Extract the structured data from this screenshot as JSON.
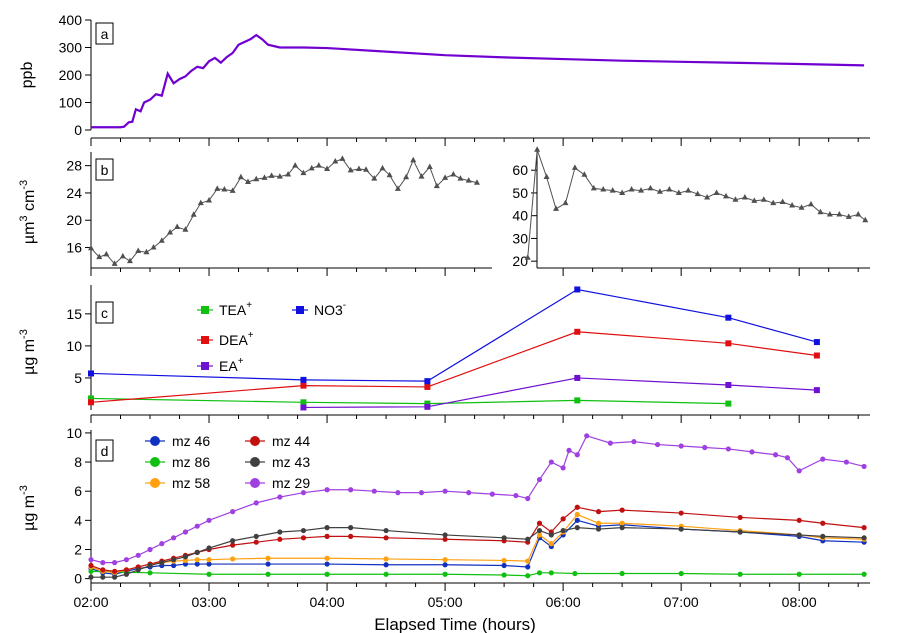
{
  "chart_data": [
    {
      "type": "line",
      "panel_label": "a",
      "ylabel": "ppb",
      "ylim": [
        0,
        400
      ],
      "yticks": [
        "0",
        "100",
        "200",
        "300",
        "400"
      ],
      "color": "#7000d0",
      "x": [
        2.0,
        2.25,
        2.28,
        2.32,
        2.35,
        2.38,
        2.42,
        2.45,
        2.5,
        2.55,
        2.6,
        2.65,
        2.7,
        2.75,
        2.8,
        2.85,
        2.9,
        2.95,
        3.0,
        3.05,
        3.1,
        3.15,
        3.2,
        3.25,
        3.3,
        3.35,
        3.4,
        3.45,
        3.5,
        3.6,
        3.8,
        4.0,
        4.5,
        5.0,
        5.5,
        6.0,
        6.5,
        7.0,
        7.5,
        8.0,
        8.55
      ],
      "y": [
        10,
        10,
        12,
        28,
        30,
        75,
        68,
        100,
        110,
        130,
        125,
        205,
        170,
        185,
        195,
        215,
        230,
        225,
        250,
        262,
        245,
        265,
        280,
        310,
        320,
        330,
        345,
        330,
        310,
        300,
        300,
        298,
        285,
        272,
        264,
        258,
        252,
        248,
        244,
        240,
        235
      ]
    },
    {
      "type": "line",
      "panel_label": "b",
      "ylabel": "µm³ cm⁻³",
      "ylabel_base": "µm",
      "ylabel_sup1": "3",
      "ylabel_mid": " cm",
      "ylabel_sup2": "-3",
      "color": "#505050",
      "left": {
        "ylim": [
          13,
          30
        ],
        "yticks": [
          "16",
          "20",
          "24",
          "28"
        ],
        "x": [
          2.0,
          2.07,
          2.13,
          2.2,
          2.27,
          2.33,
          2.4,
          2.47,
          2.53,
          2.6,
          2.67,
          2.73,
          2.8,
          2.87,
          2.93,
          3.0,
          3.07,
          3.13,
          3.2,
          3.27,
          3.33,
          3.4,
          3.47,
          3.53,
          3.6,
          3.67,
          3.73,
          3.8,
          3.87,
          3.93,
          4.0,
          4.07,
          4.13,
          4.2,
          4.27,
          4.33,
          4.4,
          4.47,
          4.53,
          4.6,
          4.67,
          4.73,
          4.8,
          4.87,
          4.93,
          5.0,
          5.07,
          5.13,
          5.2,
          5.27
        ],
        "y": [
          15.9,
          14.6,
          15.0,
          13.6,
          14.7,
          14.0,
          15.5,
          15.3,
          16.0,
          17.0,
          18.2,
          19.0,
          18.6,
          20.8,
          22.5,
          22.9,
          24.6,
          24.5,
          24.3,
          26.3,
          25.6,
          26.0,
          26.2,
          26.5,
          26.4,
          26.7,
          28.0,
          26.9,
          27.6,
          28.0,
          27.5,
          28.6,
          29.0,
          27.3,
          27.5,
          27.4,
          26.1,
          27.6,
          26.6,
          24.6,
          26.3,
          28.8,
          26.4,
          27.8,
          25.0,
          26.2,
          26.7,
          26.1,
          25.8,
          25.5
        ]
      },
      "right": {
        "ylim": [
          17,
          68
        ],
        "yticks": [
          "20",
          "30",
          "40",
          "50",
          "60"
        ],
        "x": [
          5.7,
          5.78,
          5.86,
          5.94,
          6.02,
          6.1,
          6.18,
          6.26,
          6.34,
          6.42,
          6.5,
          6.58,
          6.66,
          6.74,
          6.82,
          6.9,
          6.98,
          7.06,
          7.14,
          7.22,
          7.3,
          7.38,
          7.46,
          7.54,
          7.62,
          7.7,
          7.78,
          7.86,
          7.94,
          8.02,
          8.1,
          8.18,
          8.26,
          8.34,
          8.42,
          8.5,
          8.56
        ],
        "y": [
          21.5,
          69.0,
          57.0,
          43.0,
          45.5,
          61.0,
          58.0,
          52.0,
          51.5,
          51.0,
          50.0,
          51.5,
          51.0,
          52.0,
          50.5,
          51.5,
          50.0,
          51.0,
          49.5,
          48.0,
          50.0,
          48.5,
          47.0,
          48.0,
          46.5,
          47.0,
          45.5,
          46.0,
          44.5,
          43.5,
          45.0,
          41.5,
          40.5,
          40.5,
          39.5,
          40.5,
          38.0
        ]
      }
    },
    {
      "type": "line",
      "panel_label": "c",
      "ylabel": "µg m⁻³",
      "ylabel_base": "µg m",
      "ylabel_sup": "-3",
      "ylim": [
        0,
        19.5
      ],
      "yticks": [
        "5",
        "10",
        "15"
      ],
      "series": [
        {
          "name": "TEA",
          "sup": "+",
          "color": "#10c010",
          "x": [
            2.0,
            3.8,
            4.85,
            6.12,
            7.4
          ],
          "values": [
            1.8,
            1.2,
            1.0,
            1.5,
            1.0
          ]
        },
        {
          "name": "DEA",
          "sup": "+",
          "color": "#e01010",
          "x": [
            2.0,
            3.8,
            4.85,
            6.12,
            7.4,
            8.15
          ],
          "values": [
            1.2,
            3.8,
            3.6,
            12.2,
            10.4,
            8.5
          ]
        },
        {
          "name": "EA",
          "sup": "+",
          "color": "#7010d0",
          "x": [
            3.8,
            4.85,
            6.12,
            7.4,
            8.15
          ],
          "values": [
            0.4,
            0.5,
            5.0,
            3.9,
            3.1
          ]
        },
        {
          "name": "NO3",
          "sup": "-",
          "color": "#1010e0",
          "x": [
            2.0,
            3.8,
            4.85,
            6.12,
            7.4,
            8.15
          ],
          "values": [
            5.7,
            4.7,
            4.5,
            18.8,
            14.4,
            10.6
          ]
        }
      ]
    },
    {
      "type": "line",
      "panel_label": "d",
      "ylabel": "µg m⁻³",
      "ylabel_base": "µg m",
      "ylabel_sup": "-3",
      "ylim": [
        -0.3,
        10.2
      ],
      "yticks": [
        "0",
        "2",
        "4",
        "6",
        "8",
        "10"
      ],
      "xlabel": "Elapsed Time (hours)",
      "xticks": [
        "02:00",
        "03:00",
        "04:00",
        "05:00",
        "06:00",
        "07:00",
        "08:00"
      ],
      "xlim": [
        2.0,
        8.6
      ],
      "series": [
        {
          "name": "mz 46",
          "color": "#1030c0",
          "x": [
            2.0,
            2.1,
            2.2,
            2.3,
            2.4,
            2.5,
            2.6,
            2.7,
            2.8,
            2.9,
            3.0,
            3.5,
            4.0,
            4.5,
            5.0,
            5.5,
            5.7,
            5.8,
            5.9,
            6.0,
            6.12,
            6.3,
            6.5,
            7.0,
            7.5,
            8.0,
            8.2,
            8.55
          ],
          "values": [
            0.7,
            0.4,
            0.3,
            0.5,
            0.7,
            0.8,
            0.9,
            0.9,
            1.0,
            1.0,
            1.0,
            1.0,
            1.0,
            0.95,
            0.95,
            0.9,
            0.8,
            2.8,
            2.2,
            3.0,
            4.0,
            3.6,
            3.7,
            3.4,
            3.2,
            2.9,
            2.6,
            2.5
          ]
        },
        {
          "name": "mz 86",
          "color": "#10c010",
          "x": [
            2.0,
            2.5,
            3.0,
            3.5,
            4.0,
            4.5,
            5.0,
            5.5,
            5.7,
            5.8,
            5.9,
            6.1,
            6.5,
            7.0,
            7.5,
            8.0,
            8.55
          ],
          "values": [
            0.5,
            0.4,
            0.3,
            0.3,
            0.3,
            0.3,
            0.3,
            0.25,
            0.2,
            0.4,
            0.4,
            0.35,
            0.35,
            0.35,
            0.3,
            0.3,
            0.3
          ]
        },
        {
          "name": "mz 58",
          "color": "#ffa010",
          "x": [
            2.0,
            2.1,
            2.2,
            2.3,
            2.4,
            2.5,
            2.6,
            2.7,
            2.8,
            2.9,
            3.0,
            3.2,
            3.5,
            4.0,
            4.5,
            5.0,
            5.5,
            5.7,
            5.8,
            5.9,
            6.0,
            6.12,
            6.3,
            6.5,
            7.0,
            7.5,
            8.0,
            8.2,
            8.55
          ],
          "values": [
            0.8,
            0.5,
            0.4,
            0.6,
            0.8,
            1.0,
            1.1,
            1.2,
            1.25,
            1.3,
            1.3,
            1.35,
            1.4,
            1.4,
            1.35,
            1.3,
            1.25,
            1.2,
            3.0,
            2.4,
            3.2,
            4.4,
            3.8,
            3.8,
            3.6,
            3.3,
            3.0,
            2.8,
            2.7
          ]
        },
        {
          "name": "mz 44",
          "color": "#c01010",
          "x": [
            2.0,
            2.1,
            2.2,
            2.3,
            2.4,
            2.5,
            2.6,
            2.7,
            2.8,
            2.9,
            3.0,
            3.2,
            3.4,
            3.6,
            3.8,
            4.0,
            4.2,
            4.5,
            5.0,
            5.5,
            5.7,
            5.8,
            5.9,
            6.0,
            6.12,
            6.3,
            6.5,
            7.0,
            7.5,
            8.0,
            8.2,
            8.55
          ],
          "values": [
            0.9,
            0.6,
            0.5,
            0.6,
            0.8,
            1.0,
            1.2,
            1.4,
            1.6,
            1.8,
            2.0,
            2.3,
            2.5,
            2.7,
            2.8,
            2.9,
            2.9,
            2.8,
            2.7,
            2.6,
            2.5,
            3.8,
            3.2,
            4.1,
            4.9,
            4.6,
            4.7,
            4.5,
            4.2,
            4.0,
            3.8,
            3.5
          ]
        },
        {
          "name": "mz 43",
          "color": "#404040",
          "x": [
            2.0,
            2.1,
            2.2,
            2.3,
            2.4,
            2.5,
            2.6,
            2.7,
            2.8,
            2.9,
            3.0,
            3.2,
            3.4,
            3.6,
            3.8,
            4.0,
            4.2,
            4.5,
            5.0,
            5.5,
            5.7,
            5.8,
            5.9,
            6.0,
            6.12,
            6.3,
            6.5,
            7.0,
            7.5,
            8.0,
            8.2,
            8.55
          ],
          "values": [
            0.1,
            0.1,
            0.1,
            0.3,
            0.6,
            0.9,
            1.1,
            1.3,
            1.5,
            1.8,
            2.1,
            2.6,
            2.9,
            3.2,
            3.3,
            3.5,
            3.5,
            3.3,
            3.0,
            2.8,
            2.7,
            3.3,
            3.0,
            3.3,
            3.5,
            3.4,
            3.5,
            3.4,
            3.2,
            3.0,
            2.9,
            2.8
          ]
        },
        {
          "name": "mz 29",
          "color": "#a040e0",
          "x": [
            2.0,
            2.1,
            2.2,
            2.3,
            2.4,
            2.5,
            2.6,
            2.7,
            2.8,
            2.9,
            3.0,
            3.2,
            3.4,
            3.6,
            3.8,
            4.0,
            4.2,
            4.4,
            4.6,
            4.8,
            5.0,
            5.2,
            5.4,
            5.6,
            5.7,
            5.8,
            5.9,
            6.0,
            6.05,
            6.12,
            6.2,
            6.4,
            6.6,
            6.8,
            7.0,
            7.2,
            7.4,
            7.6,
            7.8,
            7.9,
            8.0,
            8.2,
            8.4,
            8.55
          ],
          "values": [
            1.3,
            1.1,
            1.1,
            1.3,
            1.6,
            2.0,
            2.4,
            2.8,
            3.2,
            3.6,
            4.0,
            4.6,
            5.2,
            5.6,
            5.9,
            6.1,
            6.1,
            6.0,
            5.9,
            5.9,
            6.0,
            5.9,
            5.8,
            5.7,
            5.5,
            6.8,
            8.0,
            7.6,
            8.8,
            8.5,
            9.8,
            9.3,
            9.4,
            9.2,
            9.1,
            9.0,
            8.9,
            8.7,
            8.5,
            8.3,
            7.4,
            8.2,
            8.0,
            7.7
          ]
        }
      ]
    }
  ]
}
